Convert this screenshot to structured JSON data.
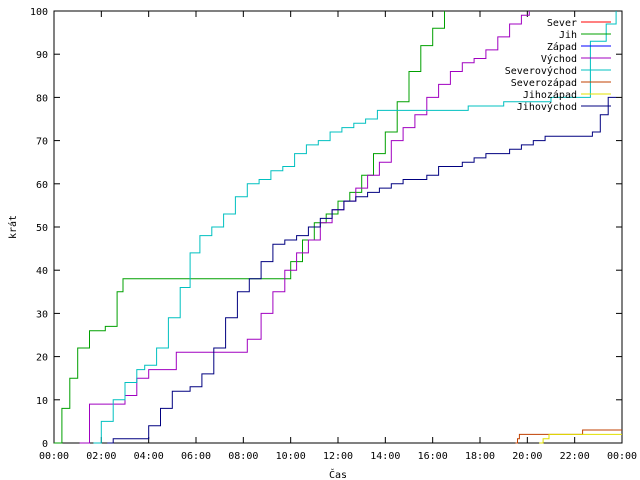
{
  "chart_data": {
    "type": "line",
    "xlabel": "Čas",
    "ylabel": "krát",
    "x_unit": "time of day (HH:MM)",
    "xlim": [
      "00:00",
      "24:00"
    ],
    "ylim": [
      0,
      100
    ],
    "x_ticks": [
      "00:00",
      "02:00",
      "04:00",
      "06:00",
      "08:00",
      "10:00",
      "12:00",
      "14:00",
      "16:00",
      "18:00",
      "20:00",
      "22:00",
      "00:00"
    ],
    "y_ticks": [
      0,
      10,
      20,
      30,
      40,
      50,
      60,
      70,
      80,
      90,
      100
    ],
    "legend_position": "top-right",
    "grid": false,
    "step_lines": true,
    "series": [
      {
        "name": "Sever",
        "color": "#ff0000",
        "points": []
      },
      {
        "name": "Jih",
        "color": "#00a000",
        "points": [
          [
            "00:00",
            0
          ],
          [
            "00:20",
            8
          ],
          [
            "00:40",
            15
          ],
          [
            "01:00",
            22
          ],
          [
            "01:30",
            26
          ],
          [
            "02:10",
            27
          ],
          [
            "02:40",
            35
          ],
          [
            "02:55",
            38
          ],
          [
            "03:30",
            38
          ],
          [
            "09:30",
            38
          ],
          [
            "10:00",
            42
          ],
          [
            "10:30",
            47
          ],
          [
            "11:00",
            51
          ],
          [
            "11:30",
            53
          ],
          [
            "12:00",
            56
          ],
          [
            "12:30",
            58
          ],
          [
            "13:00",
            62
          ],
          [
            "13:30",
            67
          ],
          [
            "14:00",
            72
          ],
          [
            "14:30",
            79
          ],
          [
            "15:00",
            86
          ],
          [
            "15:30",
            92
          ],
          [
            "16:00",
            96
          ],
          [
            "16:30",
            100
          ]
        ]
      },
      {
        "name": "Západ",
        "color": "#0000ff",
        "points": []
      },
      {
        "name": "Východ",
        "color": "#a000c0",
        "points": [
          [
            "01:05",
            0
          ],
          [
            "01:30",
            9
          ],
          [
            "02:30",
            9
          ],
          [
            "03:00",
            11
          ],
          [
            "03:30",
            15
          ],
          [
            "04:00",
            17
          ],
          [
            "04:45",
            17
          ],
          [
            "05:10",
            21
          ],
          [
            "06:00",
            21
          ],
          [
            "07:50",
            21
          ],
          [
            "08:10",
            24
          ],
          [
            "08:45",
            30
          ],
          [
            "09:15",
            35
          ],
          [
            "09:45",
            40
          ],
          [
            "10:15",
            44
          ],
          [
            "10:45",
            47
          ],
          [
            "11:15",
            51
          ],
          [
            "11:45",
            54
          ],
          [
            "12:15",
            56
          ],
          [
            "12:45",
            59
          ],
          [
            "13:15",
            62
          ],
          [
            "13:45",
            65
          ],
          [
            "14:15",
            70
          ],
          [
            "14:45",
            73
          ],
          [
            "15:15",
            76
          ],
          [
            "15:45",
            80
          ],
          [
            "16:15",
            83
          ],
          [
            "16:45",
            86
          ],
          [
            "17:15",
            88
          ],
          [
            "17:45",
            89
          ],
          [
            "18:15",
            91
          ],
          [
            "18:45",
            94
          ],
          [
            "19:15",
            97
          ],
          [
            "19:45",
            99
          ],
          [
            "20:05",
            100
          ]
        ]
      },
      {
        "name": "Severovýchod",
        "color": "#00c0c0",
        "points": [
          [
            "01:40",
            0
          ],
          [
            "02:00",
            5
          ],
          [
            "02:30",
            10
          ],
          [
            "03:00",
            14
          ],
          [
            "03:30",
            17
          ],
          [
            "03:50",
            18
          ],
          [
            "04:20",
            22
          ],
          [
            "04:50",
            29
          ],
          [
            "05:20",
            36
          ],
          [
            "05:45",
            44
          ],
          [
            "06:10",
            48
          ],
          [
            "06:40",
            50
          ],
          [
            "07:10",
            53
          ],
          [
            "07:40",
            57
          ],
          [
            "08:10",
            60
          ],
          [
            "08:40",
            61
          ],
          [
            "09:10",
            63
          ],
          [
            "09:40",
            64
          ],
          [
            "10:10",
            67
          ],
          [
            "10:40",
            69
          ],
          [
            "11:10",
            70
          ],
          [
            "11:40",
            72
          ],
          [
            "12:10",
            73
          ],
          [
            "12:40",
            74
          ],
          [
            "13:10",
            75
          ],
          [
            "13:40",
            77
          ],
          [
            "14:30",
            77
          ],
          [
            "15:30",
            77
          ],
          [
            "16:30",
            77
          ],
          [
            "17:30",
            78
          ],
          [
            "19:00",
            79
          ],
          [
            "21:00",
            80
          ],
          [
            "22:00",
            80
          ],
          [
            "22:40",
            93
          ],
          [
            "23:20",
            97
          ],
          [
            "23:45",
            100
          ]
        ]
      },
      {
        "name": "Severozápad",
        "color": "#c04000",
        "points": [
          [
            "19:30",
            0
          ],
          [
            "19:35",
            1
          ],
          [
            "19:40",
            2
          ],
          [
            "20:40",
            2
          ],
          [
            "21:30",
            2
          ],
          [
            "22:20",
            3
          ],
          [
            "24:00",
            3
          ]
        ]
      },
      {
        "name": "Jihozápad",
        "color": "#e0e000",
        "points": [
          [
            "20:30",
            0
          ],
          [
            "20:40",
            1
          ],
          [
            "20:55",
            2
          ],
          [
            "21:30",
            2
          ],
          [
            "22:30",
            2
          ],
          [
            "24:00",
            2
          ]
        ]
      },
      {
        "name": "Jihovýchod",
        "color": "#000080",
        "points": [
          [
            "02:15",
            0
          ],
          [
            "02:30",
            1
          ],
          [
            "03:45",
            1
          ],
          [
            "04:00",
            4
          ],
          [
            "04:30",
            8
          ],
          [
            "05:00",
            12
          ],
          [
            "05:45",
            13
          ],
          [
            "06:15",
            16
          ],
          [
            "06:45",
            22
          ],
          [
            "07:15",
            29
          ],
          [
            "07:45",
            35
          ],
          [
            "08:15",
            38
          ],
          [
            "08:45",
            42
          ],
          [
            "09:15",
            46
          ],
          [
            "09:45",
            47
          ],
          [
            "10:15",
            48
          ],
          [
            "10:45",
            50
          ],
          [
            "11:15",
            52
          ],
          [
            "11:45",
            54
          ],
          [
            "12:15",
            56
          ],
          [
            "12:45",
            57
          ],
          [
            "13:15",
            58
          ],
          [
            "13:45",
            59
          ],
          [
            "14:15",
            60
          ],
          [
            "14:45",
            61
          ],
          [
            "15:15",
            61
          ],
          [
            "15:45",
            62
          ],
          [
            "16:15",
            64
          ],
          [
            "16:45",
            64
          ],
          [
            "17:15",
            65
          ],
          [
            "17:45",
            66
          ],
          [
            "18:15",
            67
          ],
          [
            "18:45",
            67
          ],
          [
            "19:15",
            68
          ],
          [
            "19:45",
            69
          ],
          [
            "20:15",
            70
          ],
          [
            "20:45",
            71
          ],
          [
            "21:15",
            71
          ],
          [
            "21:45",
            71
          ],
          [
            "22:15",
            71
          ],
          [
            "22:45",
            72
          ],
          [
            "23:05",
            76
          ],
          [
            "23:25",
            80
          ],
          [
            "23:45",
            80
          ]
        ]
      }
    ]
  }
}
